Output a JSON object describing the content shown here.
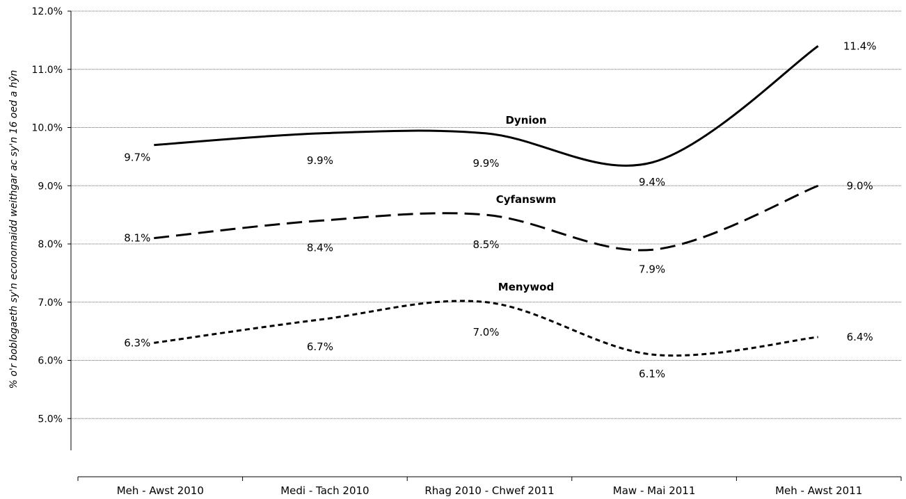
{
  "chart_data": {
    "type": "line",
    "title": "",
    "xlabel": "",
    "ylabel": "% o'r boblogaeth sy'n economaidd weithgar ac sy'n 16 oed a hŷn",
    "categories": [
      "Meh - Awst 2010",
      "Medi - Tach 2010",
      "Rhag 2010 - Chwef 2011",
      "Maw - Mai 2011",
      "Meh - Awst 2011"
    ],
    "ylim": [
      4.5,
      12.0
    ],
    "yticks": [
      "5.0%",
      "6.0%",
      "7.0%",
      "8.0%",
      "9.0%",
      "10.0%",
      "11.0%",
      "12.0%"
    ],
    "grid": true,
    "smooth": true,
    "series": [
      {
        "name": "Dynion",
        "values": [
          9.7,
          9.9,
          9.9,
          9.4,
          11.4
        ],
        "labels": [
          "9.7%",
          "9.9%",
          "9.9%",
          "9.4%",
          "11.4%"
        ],
        "line_style": "solid",
        "color": "#000000"
      },
      {
        "name": "Cyfanswm",
        "values": [
          8.1,
          8.4,
          8.5,
          7.9,
          9.0
        ],
        "labels": [
          "8.1%",
          "8.4%",
          "8.5%",
          "7.9%",
          "9.0%"
        ],
        "line_style": "long-dash",
        "color": "#000000"
      },
      {
        "name": "Menywod",
        "values": [
          6.3,
          6.7,
          7.0,
          6.1,
          6.4
        ],
        "labels": [
          "6.3%",
          "6.7%",
          "7.0%",
          "6.1%",
          "6.4%"
        ],
        "line_style": "short-dash",
        "color": "#000000"
      }
    ]
  }
}
